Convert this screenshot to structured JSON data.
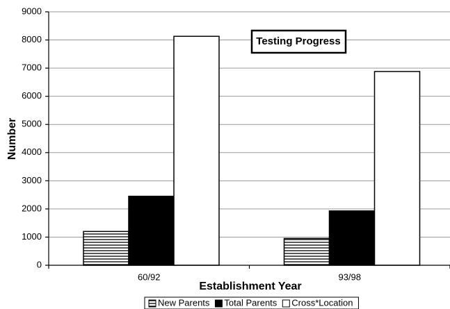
{
  "chart_data": {
    "type": "bar",
    "title": "Testing Progress",
    "x_label": "Establishment Year",
    "y_label": "Number",
    "categories": [
      "60/92",
      "93/98"
    ],
    "series": [
      {
        "name": "New Parents",
        "color": "#000000",
        "pattern": "horizontal-lines",
        "values": [
          1200,
          950
        ]
      },
      {
        "name": "Total Parents",
        "color": "#000000",
        "values": [
          2450,
          1930
        ]
      },
      {
        "name": "Cross*Location",
        "color": "#ffffff",
        "values": [
          8130,
          6880
        ]
      }
    ],
    "ylim": [
      0,
      9000
    ],
    "yticks": [
      0,
      1000,
      2000,
      3000,
      4000,
      5000,
      6000,
      7000,
      8000,
      9000
    ],
    "grid": true,
    "legend": "bottom"
  }
}
